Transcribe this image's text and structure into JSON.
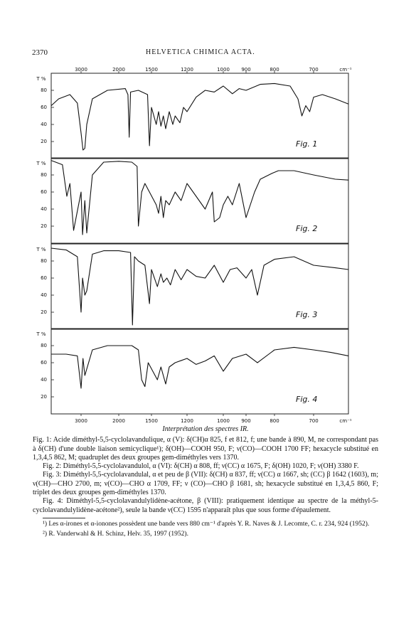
{
  "header": {
    "page_number": "2370",
    "journal": "HELVETICA CHIMICA ACTA."
  },
  "axis": {
    "unit": "cm⁻¹",
    "y_label": "T %",
    "xlim": [
      3800,
      620
    ],
    "xticks": [
      3000,
      2000,
      1500,
      1200,
      1000,
      900,
      800,
      700
    ],
    "ylim": [
      0,
      100
    ],
    "yticks": [
      20,
      40,
      60,
      80
    ]
  },
  "figures": [
    {
      "label": "Fig. 1",
      "spectrum": {
        "x": [
          3800,
          3600,
          3300,
          3100,
          3000,
          2950,
          2900,
          2850,
          2700,
          2300,
          1900,
          1860,
          1840,
          1820,
          1700,
          1560,
          1530,
          1500,
          1460,
          1440,
          1420,
          1400,
          1380,
          1350,
          1320,
          1300,
          1260,
          1230,
          1200,
          1150,
          1100,
          1050,
          1000,
          960,
          930,
          900,
          850,
          800,
          760,
          740,
          730,
          720,
          710,
          700,
          680,
          650,
          620
        ],
        "values": [
          62,
          70,
          75,
          65,
          30,
          10,
          12,
          40,
          70,
          80,
          82,
          75,
          25,
          78,
          80,
          75,
          15,
          60,
          40,
          55,
          38,
          50,
          35,
          55,
          40,
          50,
          42,
          60,
          55,
          72,
          80,
          78,
          85,
          76,
          82,
          80,
          87,
          88,
          85,
          70,
          50,
          62,
          55,
          72,
          75,
          70,
          64
        ]
      }
    },
    {
      "label": "Fig. 2",
      "spectrum": {
        "x": [
          3800,
          3500,
          3380,
          3300,
          3200,
          3000,
          2960,
          2900,
          2850,
          2700,
          2400,
          2000,
          1800,
          1720,
          1700,
          1675,
          1650,
          1600,
          1460,
          1440,
          1420,
          1400,
          1380,
          1350,
          1300,
          1250,
          1200,
          1150,
          1100,
          1060,
          1050,
          1020,
          1000,
          980,
          960,
          930,
          900,
          870,
          850,
          808,
          790,
          750,
          700,
          650,
          620
        ],
        "values": [
          97,
          92,
          55,
          70,
          15,
          60,
          10,
          50,
          12,
          80,
          95,
          96,
          95,
          90,
          20,
          40,
          60,
          70,
          45,
          35,
          55,
          30,
          50,
          45,
          60,
          50,
          70,
          55,
          40,
          60,
          25,
          30,
          45,
          55,
          45,
          70,
          30,
          60,
          75,
          82,
          85,
          85,
          80,
          75,
          74
        ]
      }
    },
    {
      "label": "Fig. 3",
      "spectrum": {
        "x": [
          3800,
          3400,
          3100,
          3000,
          2960,
          2900,
          2850,
          2700,
          2400,
          2000,
          1820,
          1790,
          1760,
          1700,
          1600,
          1530,
          1500,
          1450,
          1420,
          1400,
          1370,
          1340,
          1300,
          1250,
          1200,
          1150,
          1100,
          1050,
          1000,
          970,
          940,
          900,
          880,
          860,
          837,
          800,
          750,
          700,
          650,
          620
        ],
        "values": [
          95,
          93,
          85,
          20,
          60,
          40,
          45,
          88,
          92,
          92,
          90,
          5,
          85,
          80,
          75,
          30,
          70,
          50,
          65,
          55,
          60,
          52,
          70,
          58,
          70,
          62,
          60,
          75,
          55,
          70,
          72,
          60,
          70,
          40,
          75,
          82,
          85,
          75,
          72,
          70
        ]
      }
    },
    {
      "label": "Fig. 4",
      "spectrum": {
        "x": [
          3800,
          3400,
          3100,
          3000,
          2950,
          2900,
          2700,
          2300,
          1800,
          1700,
          1650,
          1600,
          1550,
          1450,
          1420,
          1380,
          1350,
          1300,
          1200,
          1150,
          1100,
          1050,
          1000,
          960,
          900,
          860,
          800,
          750,
          700,
          660,
          620
        ],
        "values": [
          70,
          70,
          68,
          30,
          65,
          45,
          75,
          80,
          80,
          75,
          40,
          32,
          60,
          40,
          55,
          35,
          55,
          60,
          65,
          58,
          62,
          68,
          50,
          65,
          70,
          60,
          75,
          78,
          75,
          72,
          68
        ]
      }
    }
  ],
  "caption": {
    "title": "Interprétation des spectres IR.",
    "paragraphs": [
      "Fig. 1: Acide diméthyl-5,5-cyclolavandulique, α (V): δ(CH)α 825, f et 812, f; une bande à 890, M, ne correspondant pas à δ(CH) d'une double liaison semicyclique¹); δ(OH)—COOH 950, F; ν(CO)—COOH 1700 FF; hexacycle substitué en 1,3,4,5 862, M; quadruplet des deux groupes gem-diméthyles vers 1370.",
      "Fig. 2: Diméthyl-5,5-cyclolavandulol, α (VI): δ(CH) α 808, ff; ν(CC) α 1675, F; δ(OH) 1020, F; ν(OH) 3380 F.",
      "Fig. 3: Diméthyl-5,5-cyclolavandulal, α et peu de β (VII): δ(CH) α 837, ff; ν(CC) α 1667, sh; (CC) β 1642 (1603), m; ν(CH)—CHO 2700, m; ν(CO)—CHO α 1709, FF; ν (CO)—CHO β 1681, sh; hexacycle substitué en 1,3,4,5 860, F; triplet des deux groupes gem-diméthyles 1370.",
      "Fig. 4: Diméthyl-5,5-cyclolavandulylidène-acétone, β (VIII): pratiquement identique au spectre de la méthyl-5-cyclolavandulylidène-acétone²), seule la bande ν(CC) 1595 n'apparaît plus que sous forme d'épaulement."
    ],
    "footnotes": [
      "¹) Les α-irones et α-ionones possèdent une bande vers 880 cm⁻¹ d'après Y. R. Naves & J. Lecomte, C. r. 234, 924 (1952).",
      "²) R. Vanderwahl & H. Schinz, Helv. 35, 1997 (1952)."
    ]
  }
}
